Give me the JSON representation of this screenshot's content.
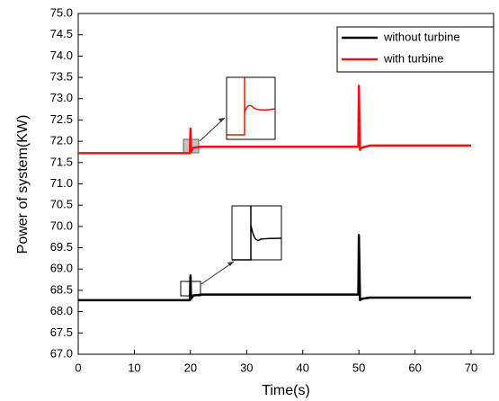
{
  "chart_data": {
    "type": "line",
    "x_label": "Time(s)",
    "y_label": "Power of system(KW)",
    "x": [
      0,
      19.9,
      20,
      20.1,
      20.5,
      22,
      49.9,
      50,
      50.2,
      50.5,
      52,
      70
    ],
    "series": [
      {
        "name": "without turbine",
        "color": "#000000",
        "values": [
          68.27,
          68.27,
          68.85,
          68.3,
          68.38,
          68.4,
          68.4,
          69.8,
          68.27,
          68.3,
          68.33,
          68.33
        ]
      },
      {
        "name": "with turbine",
        "color": "#ee1111",
        "values": [
          71.72,
          71.72,
          72.3,
          71.75,
          71.85,
          71.87,
          71.87,
          73.3,
          71.8,
          71.85,
          71.9,
          71.9
        ]
      }
    ],
    "xlim": [
      0,
      74
    ],
    "ylim": [
      67,
      75
    ],
    "xticks": [
      0,
      10,
      20,
      30,
      40,
      50,
      60,
      70
    ],
    "yticks": [
      {
        "value": 67,
        "label": "67.0"
      },
      {
        "value": 67.5,
        "label": "67.5"
      },
      {
        "value": 68,
        "label": "68.0"
      },
      {
        "value": 68.5,
        "label": "68.5"
      },
      {
        "value": 69,
        "label": "69.0"
      },
      {
        "value": 69.5,
        "label": "69.5"
      },
      {
        "value": 70,
        "label": "70.0"
      },
      {
        "value": 70.5,
        "label": "70.5"
      },
      {
        "value": 71,
        "label": "71.0"
      },
      {
        "value": 71.5,
        "label": "71.5"
      },
      {
        "value": 72,
        "label": "72.0"
      },
      {
        "value": 72.5,
        "label": "72.5"
      },
      {
        "value": 73,
        "label": "73.0"
      },
      {
        "value": 73.5,
        "label": "73.5"
      },
      {
        "value": 74,
        "label": "74.0"
      },
      {
        "value": 74.5,
        "label": "74.5"
      },
      {
        "value": 75,
        "label": "75.0"
      }
    ],
    "grid": false,
    "legend": "top-right"
  }
}
